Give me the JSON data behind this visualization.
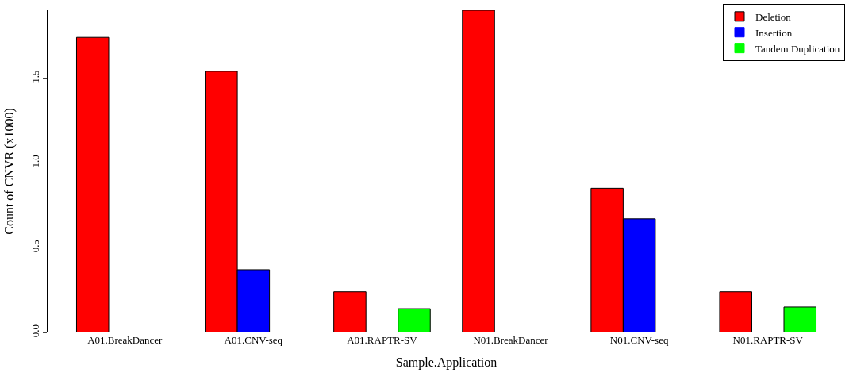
{
  "chart_data": {
    "type": "bar",
    "xlabel": "Sample.Application",
    "ylabel": "Count of CNVR (x1000)",
    "categories": [
      "A01.BreakDancer",
      "A01.CNV-seq",
      "A01.RAPTR-SV",
      "N01.BreakDancer",
      "N01.CNV-seq",
      "N01.RAPTR-SV"
    ],
    "series": [
      {
        "name": "Deletion",
        "color": "#ff0000",
        "values": [
          1.74,
          1.54,
          0.24,
          1.9,
          0.85,
          0.24
        ]
      },
      {
        "name": "Insertion",
        "color": "#0000ff",
        "values": [
          0,
          0.37,
          0,
          0,
          0.67,
          0
        ]
      },
      {
        "name": "Tandem Duplication",
        "color": "#00ff00",
        "values": [
          0,
          0,
          0.14,
          0,
          0,
          0.15
        ]
      }
    ],
    "ylim": [
      0,
      1.9
    ],
    "yticks": [
      {
        "value": 0,
        "label": "0.0"
      },
      {
        "value": 0.5,
        "label": "0.5"
      },
      {
        "value": 1,
        "label": "1.0"
      },
      {
        "value": 1.5,
        "label": "1.5"
      }
    ],
    "legend": "top right"
  }
}
